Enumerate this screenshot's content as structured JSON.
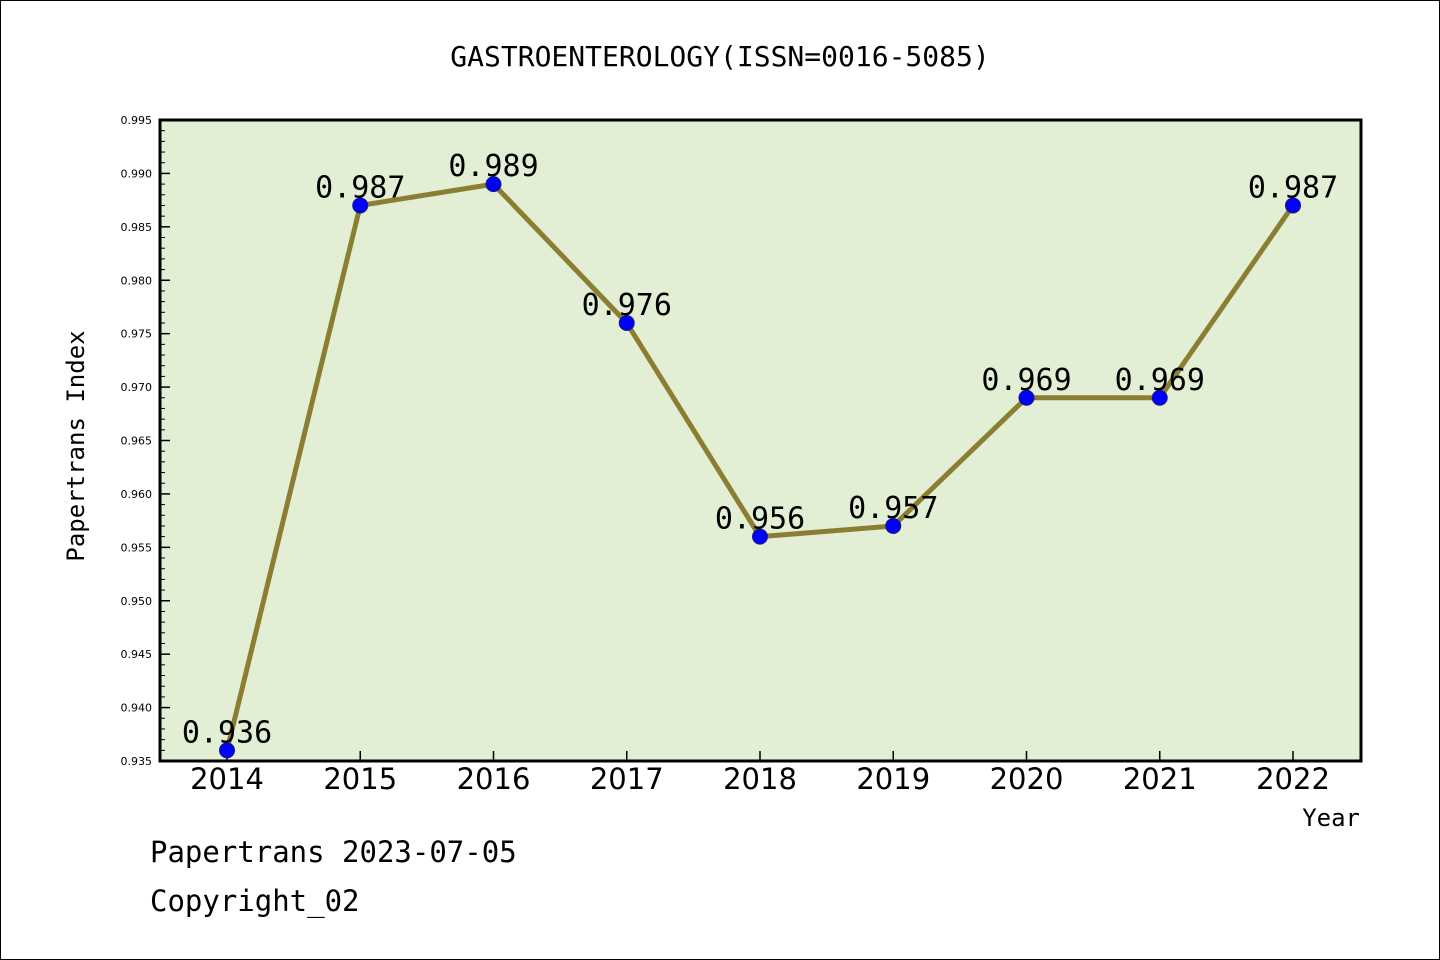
{
  "chart_data": {
    "type": "line",
    "title": "GASTROENTEROLOGY(ISSN=0016-5085)",
    "xlabel": "Year",
    "ylabel": "Papertrans Index",
    "categories": [
      "2014",
      "2015",
      "2016",
      "2017",
      "2018",
      "2019",
      "2020",
      "2021",
      "2022"
    ],
    "series": [
      {
        "values": [
          0.936,
          0.987,
          0.989,
          0.976,
          0.956,
          0.957,
          0.969,
          0.969,
          0.987
        ],
        "data_labels": [
          "0.936",
          "0.987",
          "0.989",
          "0.976",
          "0.956",
          "0.957",
          "0.969",
          "0.969",
          "0.987"
        ]
      }
    ],
    "ylim": [
      0.935,
      0.995
    ],
    "yticks": [
      "0.935",
      "0.940",
      "0.945",
      "0.950",
      "0.955",
      "0.960",
      "0.965",
      "0.970",
      "0.975",
      "0.980",
      "0.985",
      "0.990",
      "0.995"
    ],
    "grid": false,
    "legend": "none",
    "colors": {
      "plot_background": "#e2efd5",
      "line": "#8b7e33",
      "marker": "#0000ff"
    }
  },
  "footer": {
    "line1": "Papertrans 2023-07-05",
    "line2": "Copyright_02"
  }
}
